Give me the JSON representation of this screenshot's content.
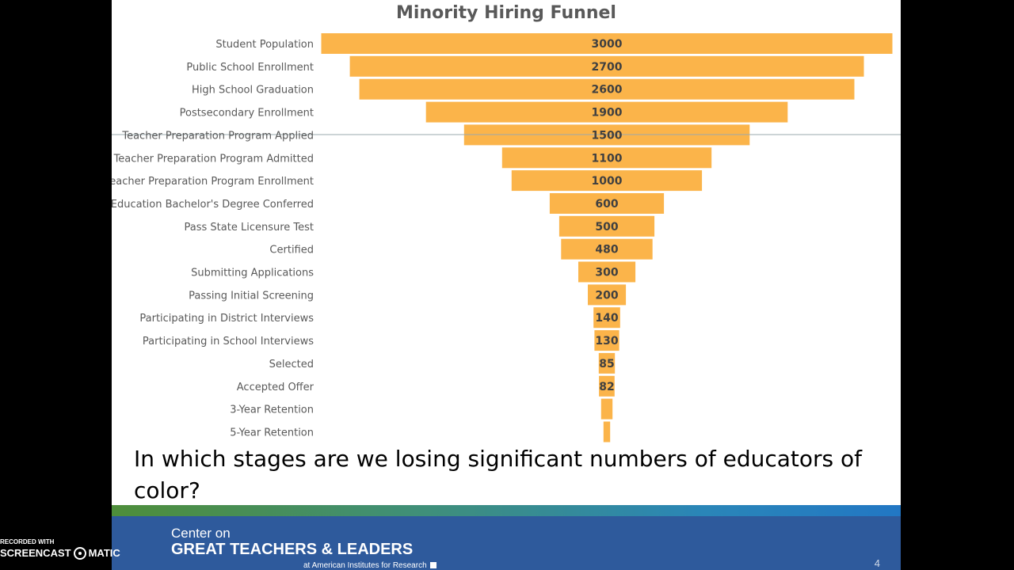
{
  "chart_data": {
    "type": "bar",
    "subtype": "funnel",
    "title": "Minority Hiring Funnel",
    "categories": [
      "Student Population",
      "Public School Enrollment",
      "High School Graduation",
      "Postsecondary Enrollment",
      "Teacher Preparation Program Applied",
      "Teacher Preparation Program Admitted",
      "Teacher Preparation Program Enrollment",
      "Education Bachelor's Degree Conferred",
      "Pass State Licensure Test",
      "Certified",
      "Submitting Applications",
      "Passing Initial Screening",
      "Participating in District Interviews",
      "Participating in School Interviews",
      "Selected",
      "Accepted Offer",
      "3-Year Retention",
      "5-Year Retention"
    ],
    "values": [
      3000,
      2700,
      2600,
      1900,
      1500,
      1100,
      1000,
      600,
      500,
      480,
      300,
      200,
      140,
      130,
      85,
      82,
      60,
      35
    ],
    "data_labels": [
      "3000",
      "2700",
      "2600",
      "1900",
      "1500",
      "1100",
      "1000",
      "600",
      "500",
      "480",
      "300",
      "200",
      "140",
      "130",
      "85",
      "82",
      "",
      ""
    ],
    "orientation": "horizontal, centered",
    "bar_color": "#FBB44A",
    "grid": false,
    "legend": "none"
  },
  "slide": {
    "question": "In which stages are we losing significant numbers of educators of color?",
    "brand_line1": "Center on",
    "brand_line2": "GREAT TEACHERS & LEADERS",
    "brand_line3": "at American Institutes for Research",
    "page_number": "4",
    "accent_color": "#2E5A9C"
  },
  "watermark": {
    "top": "RECORDED WITH",
    "left_word": "SCREENCAST",
    "right_word": "MATIC"
  }
}
